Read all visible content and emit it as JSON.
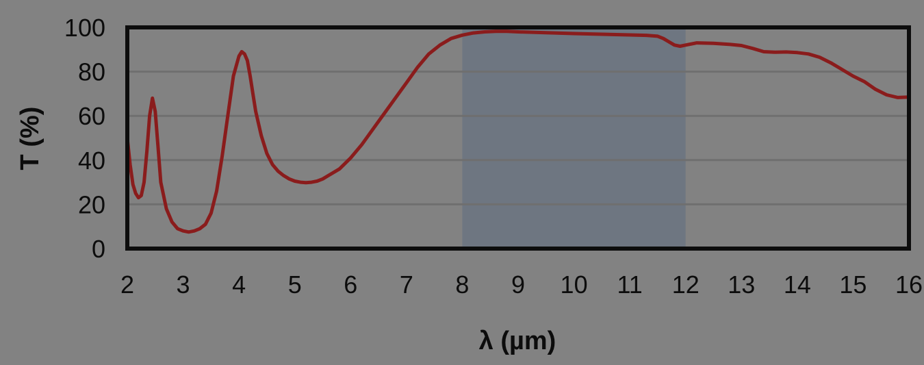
{
  "chart_data": {
    "type": "line",
    "title": "",
    "xlabel": "λ (µm)",
    "ylabel": "T (%)",
    "xlim": [
      2,
      16
    ],
    "ylim": [
      0,
      100
    ],
    "x_ticks": [
      2,
      3,
      4,
      5,
      6,
      7,
      8,
      9,
      10,
      11,
      12,
      13,
      14,
      15,
      16
    ],
    "y_ticks": [
      0,
      20,
      40,
      60,
      80,
      100
    ],
    "grid": "horizontal",
    "legend": "none",
    "highlight_band": {
      "x_start": 8,
      "x_end": 12,
      "color": "#6e7681"
    },
    "colors": {
      "background": "#828282",
      "series": "#8a1c1c",
      "frame": "#0d0d0d",
      "grid": "#6f6f6f"
    },
    "series": [
      {
        "x": [
          2.0,
          2.05,
          2.1,
          2.15,
          2.2,
          2.25,
          2.3,
          2.35,
          2.4,
          2.45,
          2.5,
          2.55,
          2.6,
          2.7,
          2.8,
          2.9,
          3.0,
          3.1,
          3.2,
          3.3,
          3.4,
          3.5,
          3.6,
          3.7,
          3.8,
          3.9,
          4.0,
          4.05,
          4.1,
          4.15,
          4.2,
          4.25,
          4.3,
          4.4,
          4.5,
          4.6,
          4.7,
          4.8,
          4.9,
          5.0,
          5.1,
          5.2,
          5.3,
          5.4,
          5.5,
          5.6,
          5.8,
          6.0,
          6.2,
          6.4,
          6.6,
          6.8,
          7.0,
          7.2,
          7.4,
          7.6,
          7.8,
          8.0,
          8.2,
          8.4,
          8.6,
          8.8,
          9.0,
          9.5,
          10.0,
          10.5,
          11.0,
          11.3,
          11.5,
          11.6,
          11.7,
          11.8,
          11.9,
          12.0,
          12.2,
          12.5,
          12.8,
          13.0,
          13.2,
          13.4,
          13.6,
          13.8,
          14.0,
          14.2,
          14.4,
          14.6,
          14.8,
          15.0,
          15.2,
          15.4,
          15.6,
          15.8,
          16.0
        ],
        "y": [
          50,
          38,
          29,
          25,
          23,
          24,
          30,
          44,
          60,
          68,
          62,
          46,
          30,
          18,
          12,
          9,
          8,
          7.5,
          8,
          9,
          11,
          16,
          26,
          42,
          60,
          78,
          87,
          89,
          88,
          85,
          78,
          70,
          62,
          51,
          43,
          38,
          35,
          33,
          31.5,
          30.5,
          30,
          29.8,
          30,
          30.5,
          31.5,
          33,
          36,
          41,
          47,
          54,
          61,
          68,
          75,
          82,
          88,
          92,
          95,
          96.5,
          97.5,
          98,
          98.2,
          98.2,
          98,
          97.6,
          97.2,
          96.9,
          96.6,
          96.4,
          96,
          95,
          93.5,
          92,
          91.5,
          92,
          93,
          92.8,
          92.3,
          91.8,
          90.5,
          89,
          88.8,
          88.9,
          88.6,
          88,
          86.5,
          84,
          81,
          78,
          75.5,
          72,
          69.5,
          68.3,
          68.5
        ]
      }
    ]
  }
}
